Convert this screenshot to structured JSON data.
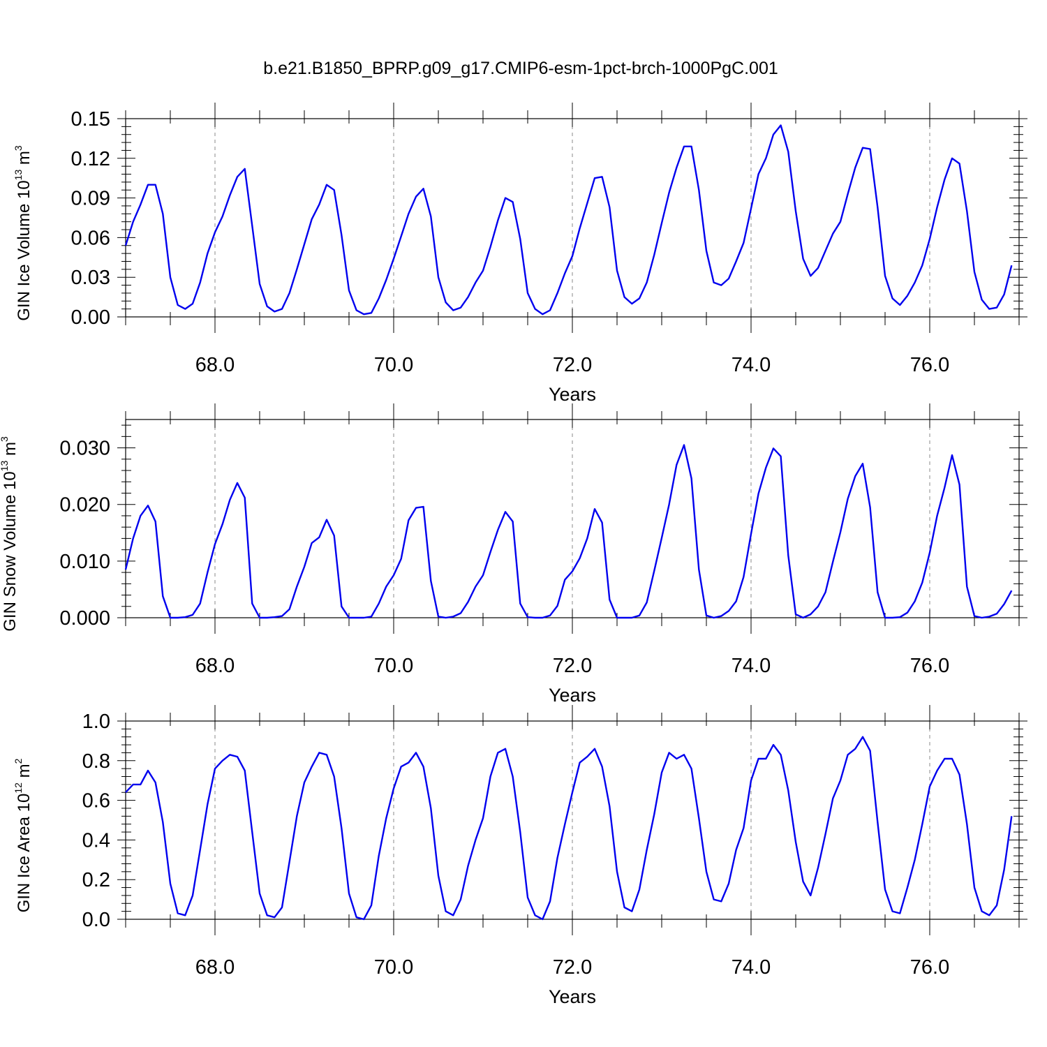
{
  "title": "b.e21.B1850_BPRP.g09_g17.CMIP6-esm-1pct-brch-1000PgC.001",
  "colors": {
    "line": "#0000ee",
    "frame": "#000000",
    "grid": "#888888"
  },
  "chart_data": [
    {
      "type": "line",
      "ylabel": "GIN Ice Volume 10^13 m^3",
      "ylabel_parts": {
        "text": "GIN Ice Volume 10",
        "exp1": "13",
        "unit": " m",
        "exp2": "3"
      },
      "xlabel": "Years",
      "xlim": [
        67.0,
        77.0
      ],
      "ylim": [
        0.0,
        0.15
      ],
      "xticks": [
        68.0,
        70.0,
        72.0,
        74.0,
        76.0
      ],
      "xtick_labels": [
        "68.0",
        "70.0",
        "72.0",
        "74.0",
        "76.0"
      ],
      "yticks": [
        0.0,
        0.03,
        0.06,
        0.09,
        0.12,
        0.15
      ],
      "ytick_labels": [
        "0.00",
        "0.03",
        "0.06",
        "0.09",
        "0.12",
        "0.15"
      ],
      "yminor_step": 0.006,
      "x_start": 67.0,
      "x_step": 0.08333,
      "grid": "dashed vertical at major x ticks",
      "values": [
        0.054,
        0.072,
        0.085,
        0.1,
        0.1,
        0.078,
        0.03,
        0.009,
        0.006,
        0.01,
        0.026,
        0.048,
        0.064,
        0.076,
        0.092,
        0.106,
        0.112,
        0.069,
        0.025,
        0.008,
        0.004,
        0.006,
        0.018,
        0.036,
        0.055,
        0.074,
        0.085,
        0.1,
        0.096,
        0.062,
        0.02,
        0.005,
        0.002,
        0.003,
        0.014,
        0.028,
        0.044,
        0.061,
        0.078,
        0.091,
        0.097,
        0.076,
        0.03,
        0.011,
        0.005,
        0.007,
        0.015,
        0.026,
        0.035,
        0.053,
        0.073,
        0.09,
        0.087,
        0.059,
        0.018,
        0.006,
        0.002,
        0.005,
        0.018,
        0.033,
        0.046,
        0.067,
        0.086,
        0.105,
        0.106,
        0.083,
        0.035,
        0.015,
        0.01,
        0.014,
        0.026,
        0.047,
        0.071,
        0.094,
        0.113,
        0.129,
        0.129,
        0.096,
        0.05,
        0.026,
        0.024,
        0.029,
        0.042,
        0.056,
        0.082,
        0.108,
        0.12,
        0.138,
        0.145,
        0.125,
        0.08,
        0.044,
        0.031,
        0.037,
        0.05,
        0.063,
        0.072,
        0.093,
        0.113,
        0.128,
        0.127,
        0.083,
        0.031,
        0.014,
        0.009,
        0.016,
        0.026,
        0.039,
        0.059,
        0.083,
        0.104,
        0.12,
        0.116,
        0.08,
        0.034,
        0.013,
        0.006,
        0.007,
        0.017,
        0.039
      ]
    },
    {
      "type": "line",
      "ylabel": "GIN Snow Volume 10^13 m^3",
      "ylabel_parts": {
        "text": "GIN Snow Volume 10",
        "exp1": "13",
        "unit": " m",
        "exp2": "3"
      },
      "xlabel": "Years",
      "xlim": [
        67.0,
        77.0
      ],
      "ylim": [
        0.0,
        0.035
      ],
      "xticks": [
        68.0,
        70.0,
        72.0,
        74.0,
        76.0
      ],
      "xtick_labels": [
        "68.0",
        "70.0",
        "72.0",
        "74.0",
        "76.0"
      ],
      "yticks": [
        0.0,
        0.01,
        0.02,
        0.03
      ],
      "ytick_labels": [
        "0.000",
        "0.010",
        "0.020",
        "0.030"
      ],
      "yminor_step": 0.002,
      "x_start": 67.0,
      "x_step": 0.08333,
      "grid": "dashed vertical at major x ticks",
      "values": [
        0.0085,
        0.014,
        0.018,
        0.0198,
        0.017,
        0.0038,
        0.0,
        0.0,
        0.0001,
        0.0005,
        0.0025,
        0.008,
        0.013,
        0.0165,
        0.0208,
        0.0238,
        0.0212,
        0.0025,
        0.0,
        0.0,
        0.0001,
        0.0003,
        0.0015,
        0.0055,
        0.009,
        0.0132,
        0.0142,
        0.0173,
        0.0145,
        0.002,
        0.0,
        0.0,
        0.0,
        0.0002,
        0.0025,
        0.0055,
        0.0075,
        0.0104,
        0.0172,
        0.0194,
        0.0196,
        0.0065,
        0.0002,
        0.0,
        0.0002,
        0.0008,
        0.0028,
        0.0055,
        0.0075,
        0.0116,
        0.0155,
        0.0187,
        0.017,
        0.0025,
        0.0001,
        0.0,
        0.0,
        0.0004,
        0.0021,
        0.0067,
        0.0082,
        0.0105,
        0.014,
        0.0192,
        0.0168,
        0.0032,
        0.0,
        0.0,
        0.0,
        0.0004,
        0.0027,
        0.0083,
        0.0141,
        0.02,
        0.027,
        0.0305,
        0.0246,
        0.0085,
        0.0004,
        0.0,
        0.0003,
        0.0012,
        0.0029,
        0.0072,
        0.0148,
        0.0219,
        0.0265,
        0.0299,
        0.0285,
        0.011,
        0.0006,
        0.0,
        0.0006,
        0.002,
        0.0045,
        0.0099,
        0.0151,
        0.021,
        0.025,
        0.0272,
        0.0195,
        0.0045,
        0.0,
        0.0,
        0.0001,
        0.0009,
        0.0029,
        0.0062,
        0.0115,
        0.018,
        0.023,
        0.0287,
        0.0235,
        0.0055,
        0.0003,
        0.0,
        0.0002,
        0.0007,
        0.0024,
        0.0048
      ]
    },
    {
      "type": "line",
      "ylabel": "GIN Ice Area 10^12 m^2",
      "ylabel_parts": {
        "text": "GIN Ice Area 10",
        "exp1": "12",
        "unit": " m",
        "exp2": "2"
      },
      "xlabel": "Years",
      "xlim": [
        67.0,
        77.0
      ],
      "ylim": [
        0.0,
        1.0
      ],
      "xticks": [
        68.0,
        70.0,
        72.0,
        74.0,
        76.0
      ],
      "xtick_labels": [
        "68.0",
        "70.0",
        "72.0",
        "74.0",
        "76.0"
      ],
      "yticks": [
        0.0,
        0.2,
        0.4,
        0.6,
        0.8,
        1.0
      ],
      "ytick_labels": [
        "0.0",
        "0.2",
        "0.4",
        "0.6",
        "0.8",
        "1.0"
      ],
      "yminor_step": 0.04,
      "x_start": 67.0,
      "x_step": 0.08333,
      "grid": "dashed vertical at major x ticks",
      "values": [
        0.64,
        0.68,
        0.68,
        0.75,
        0.69,
        0.49,
        0.18,
        0.03,
        0.02,
        0.12,
        0.35,
        0.58,
        0.76,
        0.8,
        0.83,
        0.82,
        0.75,
        0.44,
        0.13,
        0.02,
        0.01,
        0.06,
        0.29,
        0.52,
        0.69,
        0.77,
        0.84,
        0.83,
        0.72,
        0.46,
        0.13,
        0.01,
        0.0,
        0.07,
        0.32,
        0.51,
        0.66,
        0.77,
        0.79,
        0.84,
        0.77,
        0.56,
        0.22,
        0.04,
        0.02,
        0.1,
        0.27,
        0.4,
        0.51,
        0.72,
        0.84,
        0.86,
        0.72,
        0.44,
        0.11,
        0.02,
        0.0,
        0.09,
        0.31,
        0.48,
        0.64,
        0.79,
        0.82,
        0.86,
        0.77,
        0.57,
        0.24,
        0.06,
        0.04,
        0.15,
        0.35,
        0.53,
        0.74,
        0.84,
        0.81,
        0.83,
        0.76,
        0.51,
        0.24,
        0.1,
        0.09,
        0.18,
        0.35,
        0.46,
        0.7,
        0.81,
        0.81,
        0.88,
        0.83,
        0.65,
        0.39,
        0.19,
        0.12,
        0.26,
        0.43,
        0.61,
        0.7,
        0.83,
        0.86,
        0.92,
        0.85,
        0.49,
        0.15,
        0.04,
        0.03,
        0.16,
        0.3,
        0.48,
        0.67,
        0.75,
        0.81,
        0.81,
        0.73,
        0.48,
        0.16,
        0.04,
        0.02,
        0.07,
        0.25,
        0.52
      ]
    }
  ]
}
